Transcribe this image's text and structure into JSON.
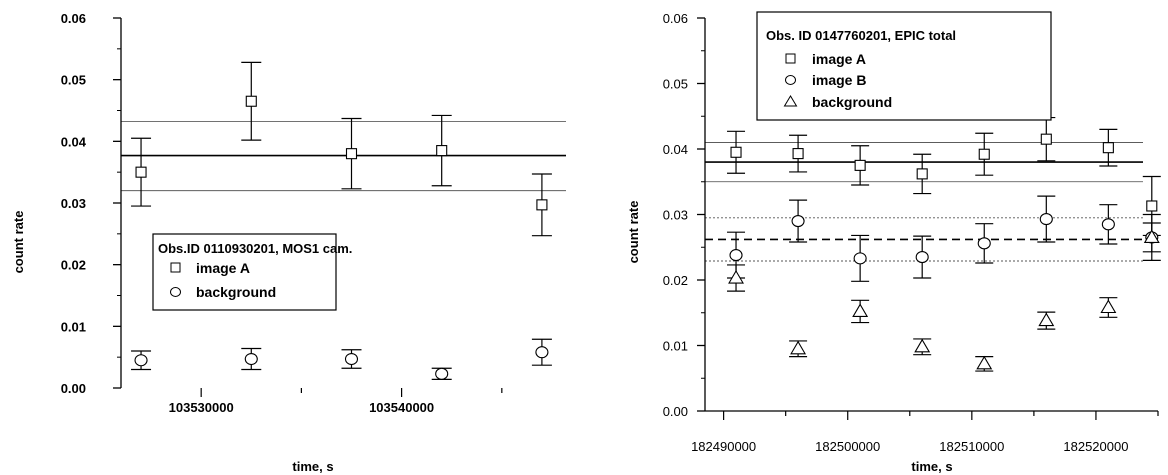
{
  "chart_data": [
    {
      "type": "scatter",
      "panel": "left",
      "title": "",
      "xlabel": "time, s",
      "ylabel": "count rate",
      "xlim": [
        103526000,
        103549000
      ],
      "ylim": [
        0,
        0.06
      ],
      "yticks": [
        0.0,
        0.01,
        0.02,
        0.03,
        0.04,
        0.05,
        0.06
      ],
      "ytick_labels": [
        "0.00",
        "0.01",
        "0.02",
        "0.03",
        "0.04",
        "0.05",
        "0.06"
      ],
      "xticks": [
        103530000,
        103540000
      ],
      "xtick_labels": [
        "103530000",
        "103540000"
      ],
      "legend": {
        "title": "Obs.ID 0110930201, MOS1 cam.",
        "position": "center",
        "entries": [
          "image A",
          "background"
        ]
      },
      "series": [
        {
          "name": "image A",
          "marker": "square",
          "x": [
            103527000,
            103532500,
            103537500,
            103542000,
            103547000
          ],
          "y": [
            0.035,
            0.0465,
            0.038,
            0.0385,
            0.0297
          ],
          "err": [
            0.0055,
            0.0063,
            0.0057,
            0.0057,
            0.005
          ]
        },
        {
          "name": "background",
          "marker": "circle",
          "x": [
            103527000,
            103532500,
            103537500,
            103542000,
            103547000
          ],
          "y": [
            0.0045,
            0.0047,
            0.0047,
            0.0023,
            0.0058
          ],
          "err": [
            0.0015,
            0.0017,
            0.0015,
            0.0009,
            0.0021
          ]
        }
      ],
      "hlines": [
        {
          "y": 0.0377,
          "style": "solid-thick"
        },
        {
          "y": 0.0432,
          "style": "solid-thin"
        },
        {
          "y": 0.032,
          "style": "solid-thin"
        }
      ]
    },
    {
      "type": "scatter",
      "panel": "right",
      "title": "",
      "xlabel": "time, s",
      "ylabel": "count rate",
      "xlim": [
        182488500,
        182525000
      ],
      "ylim": [
        0,
        0.06
      ],
      "yticks": [
        0.0,
        0.01,
        0.02,
        0.03,
        0.04,
        0.05,
        0.06
      ],
      "ytick_labels": [
        "0.00",
        "0.01",
        "0.02",
        "0.03",
        "0.04",
        "0.05",
        "0.06"
      ],
      "xticks": [
        182490000,
        182500000,
        182510000,
        182520000
      ],
      "xtick_labels": [
        "182490000",
        "182500000",
        "182510000",
        "182520000"
      ],
      "legend": {
        "title": "Obs. ID 0147760201, EPIC total",
        "position": "top-left",
        "entries": [
          "image A",
          "image B",
          "background"
        ]
      },
      "series": [
        {
          "name": "image A",
          "marker": "square",
          "x": [
            182491000,
            182496000,
            182501000,
            182506000,
            182511000,
            182516000,
            182521000,
            182524500
          ],
          "y": [
            0.0395,
            0.0393,
            0.0375,
            0.0362,
            0.0392,
            0.0415,
            0.0402,
            0.0313
          ],
          "err": [
            0.0032,
            0.0028,
            0.003,
            0.003,
            0.0032,
            0.0033,
            0.0028,
            0.0045
          ]
        },
        {
          "name": "image B",
          "marker": "circle",
          "x": [
            182491000,
            182496000,
            182501000,
            182506000,
            182511000,
            182516000,
            182521000,
            182524500
          ],
          "y": [
            0.0238,
            0.029,
            0.0233,
            0.0235,
            0.0256,
            0.0293,
            0.0285,
            0.0265
          ],
          "err": [
            0.0035,
            0.0032,
            0.0035,
            0.0032,
            0.003,
            0.0035,
            0.003,
            0.0035
          ]
        },
        {
          "name": "background",
          "marker": "triangle",
          "x": [
            182491000,
            182496000,
            182501000,
            182506000,
            182511000,
            182516000,
            182521000,
            182524500
          ],
          "y": [
            0.0203,
            0.0095,
            0.0152,
            0.0098,
            0.0072,
            0.0138,
            0.0158,
            0.0265
          ],
          "err": [
            0.002,
            0.0012,
            0.0017,
            0.0012,
            0.0011,
            0.0013,
            0.0015,
            0.0022
          ]
        }
      ],
      "hlines": [
        {
          "y": 0.038,
          "style": "solid-thick"
        },
        {
          "y": 0.041,
          "style": "solid-thin"
        },
        {
          "y": 0.035,
          "style": "solid-thin"
        },
        {
          "y": 0.0262,
          "style": "dashed-thick"
        },
        {
          "y": 0.0295,
          "style": "dotted-thin"
        },
        {
          "y": 0.0229,
          "style": "dotted-thin"
        }
      ]
    }
  ]
}
